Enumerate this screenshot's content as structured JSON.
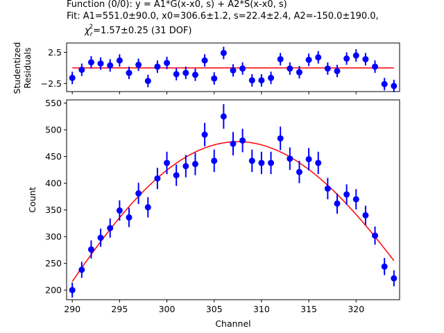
{
  "title_lines": [
    "Function (0/0): y = A1*G(x-x0, s) + A2*S(x-x0, s)",
    "Fit: A1=551.0±90.0, x0=306.6±1.2, s=22.4±2.4, A2=-150.0±190.0,"
  ],
  "chi2_symbol": "χ",
  "chi2_sub": "r",
  "chi2_sup": "2",
  "chi2_rest": "=1.57±0.25 (31 DOF)",
  "chart_data": [
    {
      "type": "scatter",
      "ylabel": [
        "Studentized",
        "Residuals"
      ],
      "xlim": [
        289.4,
        324.6
      ],
      "ylim": [
        -3.8,
        4.0
      ],
      "yticks": [
        2.5,
        -2.5
      ],
      "ytick_labels": [
        "2.5",
        "−2.5"
      ],
      "x": [
        290,
        291,
        292,
        293,
        294,
        295,
        296,
        297,
        298,
        299,
        300,
        301,
        302,
        303,
        304,
        305,
        306,
        307,
        308,
        309,
        310,
        311,
        312,
        313,
        314,
        315,
        316,
        317,
        318,
        319,
        320,
        321,
        322,
        323,
        324
      ],
      "residuals": [
        -1.6,
        -0.3,
        0.9,
        0.7,
        0.4,
        1.2,
        -0.8,
        0.5,
        -2.1,
        0.2,
        0.8,
        -1.0,
        -0.8,
        -1.1,
        1.2,
        -1.7,
        2.4,
        -0.4,
        -0.1,
        -2.0,
        -2.0,
        -1.6,
        1.4,
        -0.1,
        -0.7,
        1.3,
        1.7,
        -0.1,
        -0.5,
        1.5,
        2.0,
        1.4,
        0.2,
        -2.6,
        -2.9
      ],
      "fit_line": 0,
      "colors": {
        "points": "#0000ff",
        "fit": "#ff0000"
      }
    },
    {
      "type": "scatter",
      "xlabel": "Channel",
      "ylabel": "Count",
      "xlim": [
        289.4,
        324.6
      ],
      "ylim": [
        182,
        556
      ],
      "xticks": [
        290,
        295,
        300,
        305,
        310,
        315,
        320
      ],
      "yticks": [
        200,
        250,
        300,
        350,
        400,
        450,
        500,
        550
      ],
      "x": [
        290,
        291,
        292,
        293,
        294,
        295,
        296,
        297,
        298,
        299,
        300,
        301,
        302,
        303,
        304,
        305,
        306,
        307,
        308,
        309,
        310,
        311,
        312,
        313,
        314,
        315,
        316,
        317,
        318,
        319,
        320,
        321,
        322,
        323,
        324
      ],
      "counts": [
        200,
        238,
        276,
        298,
        316,
        349,
        336,
        381,
        355,
        409,
        438,
        415,
        432,
        436,
        491,
        442,
        525,
        474,
        480,
        442,
        438,
        438,
        484,
        446,
        421,
        445,
        438,
        390,
        362,
        379,
        370,
        340,
        302,
        244,
        222
      ],
      "errors": [
        14,
        15,
        17,
        17,
        18,
        19,
        18,
        20,
        19,
        20,
        21,
        20,
        21,
        21,
        22,
        21,
        23,
        22,
        22,
        21,
        21,
        21,
        22,
        21,
        21,
        21,
        21,
        20,
        19,
        19,
        19,
        18,
        17,
        16,
        15
      ],
      "fit": {
        "x0": 306.6,
        "peak": 477,
        "s": 22.4,
        "start": 216,
        "end": 255
      },
      "colors": {
        "points": "#0000ff",
        "fit": "#ff0000"
      }
    }
  ]
}
